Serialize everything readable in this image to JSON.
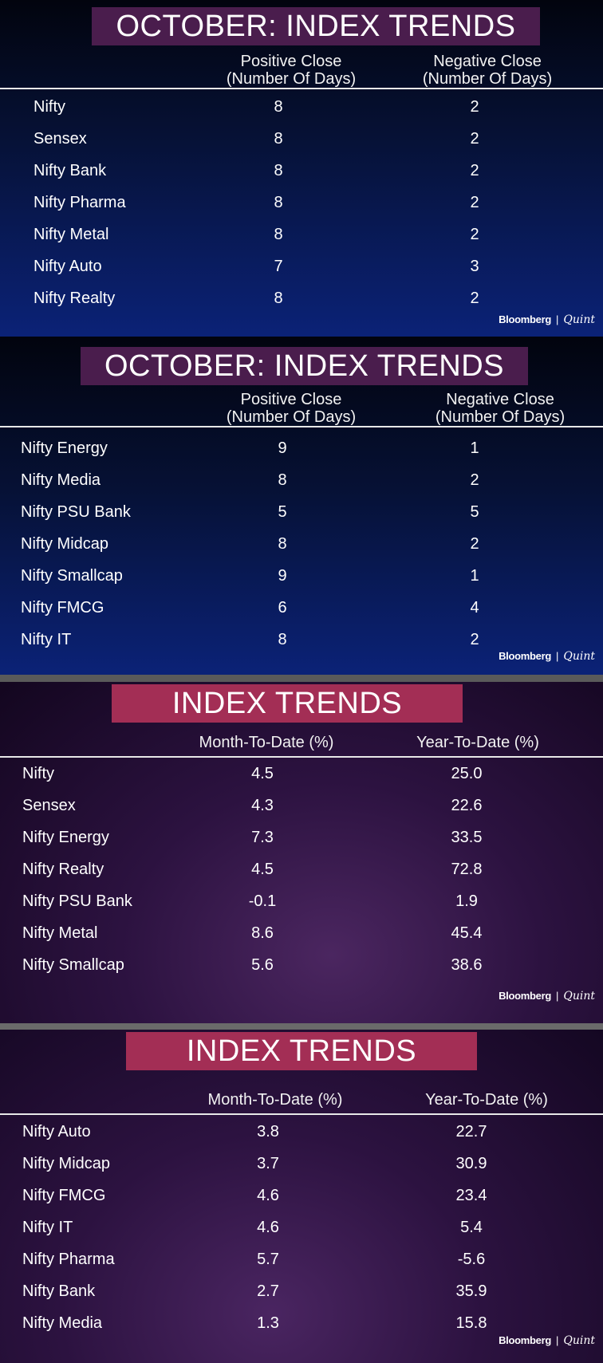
{
  "brand": {
    "name": "Bloomberg",
    "divider": "|",
    "sub": "Quint"
  },
  "panel1": {
    "title": "OCTOBER: INDEX TRENDS",
    "col1": "Positive Close\n(Number Of Days)",
    "col2": "Negative Close\n(Number Of Days)",
    "rows": [
      {
        "name": "Nifty",
        "v1": "8",
        "v2": "2"
      },
      {
        "name": "Sensex",
        "v1": "8",
        "v2": "2"
      },
      {
        "name": "Nifty Bank",
        "v1": "8",
        "v2": "2"
      },
      {
        "name": "Nifty Pharma",
        "v1": "8",
        "v2": "2"
      },
      {
        "name": "Nifty Metal",
        "v1": "8",
        "v2": "2"
      },
      {
        "name": "Nifty Auto",
        "v1": "7",
        "v2": "3"
      },
      {
        "name": "Nifty Realty",
        "v1": "8",
        "v2": "2"
      }
    ]
  },
  "panel2": {
    "title": "OCTOBER: INDEX TRENDS",
    "col1": "Positive Close\n(Number Of Days)",
    "col2": "Negative Close\n(Number Of Days)",
    "rows": [
      {
        "name": "Nifty Energy",
        "v1": "9",
        "v2": "1"
      },
      {
        "name": "Nifty Media",
        "v1": "8",
        "v2": "2"
      },
      {
        "name": "Nifty PSU Bank",
        "v1": "5",
        "v2": "5"
      },
      {
        "name": "Nifty Midcap",
        "v1": "8",
        "v2": "2"
      },
      {
        "name": "Nifty Smallcap",
        "v1": "9",
        "v2": "1"
      },
      {
        "name": "Nifty FMCG",
        "v1": "6",
        "v2": "4"
      },
      {
        "name": "Nifty IT",
        "v1": "8",
        "v2": "2"
      }
    ]
  },
  "panel3": {
    "title": "INDEX TRENDS",
    "col1": "Month-To-Date (%)",
    "col2": "Year-To-Date (%)",
    "rows": [
      {
        "name": "Nifty",
        "v1": "4.5",
        "v2": "25.0"
      },
      {
        "name": "Sensex",
        "v1": "4.3",
        "v2": "22.6"
      },
      {
        "name": "Nifty Energy",
        "v1": "7.3",
        "v2": "33.5"
      },
      {
        "name": "Nifty Realty",
        "v1": "4.5",
        "v2": "72.8"
      },
      {
        "name": "Nifty PSU Bank",
        "v1": "-0.1",
        "v2": "1.9"
      },
      {
        "name": "Nifty Metal",
        "v1": "8.6",
        "v2": "45.4"
      },
      {
        "name": "Nifty Smallcap",
        "v1": "5.6",
        "v2": "38.6"
      }
    ]
  },
  "panel4": {
    "title": "INDEX TRENDS",
    "col1": "Month-To-Date (%)",
    "col2": "Year-To-Date (%)",
    "rows": [
      {
        "name": "Nifty Auto",
        "v1": "3.8",
        "v2": "22.7"
      },
      {
        "name": "Nifty Midcap",
        "v1": "3.7",
        "v2": "30.9"
      },
      {
        "name": "Nifty FMCG",
        "v1": "4.6",
        "v2": "23.4"
      },
      {
        "name": "Nifty IT",
        "v1": "4.6",
        "v2": "5.4"
      },
      {
        "name": "Nifty Pharma",
        "v1": "5.7",
        "v2": "-5.6"
      },
      {
        "name": "Nifty Bank",
        "v1": "2.7",
        "v2": "35.9"
      },
      {
        "name": "Nifty Media",
        "v1": "1.3",
        "v2": "15.8"
      }
    ]
  }
}
